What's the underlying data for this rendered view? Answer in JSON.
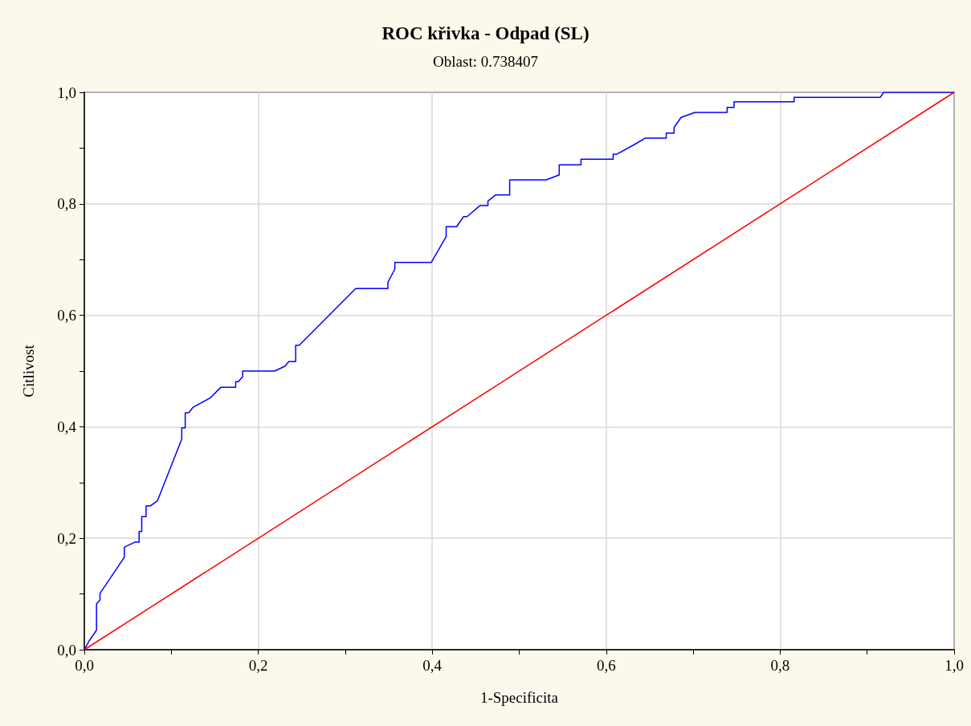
{
  "chart_data": {
    "type": "line",
    "title": "ROC křivka - Odpad (SL)",
    "subtitle": "Oblast: 0.738407",
    "xlabel": "1-Specificita",
    "ylabel": "Citlivost",
    "xlim": [
      0,
      1
    ],
    "ylim": [
      0,
      1
    ],
    "xticks": [
      {
        "value": 0,
        "label": "0,0"
      },
      {
        "value": 0.1,
        "label": null
      },
      {
        "value": 0.2,
        "label": "0,2"
      },
      {
        "value": 0.3,
        "label": null
      },
      {
        "value": 0.4,
        "label": "0,4"
      },
      {
        "value": 0.5,
        "label": null
      },
      {
        "value": 0.6,
        "label": "0,6"
      },
      {
        "value": 0.7,
        "label": null
      },
      {
        "value": 0.8,
        "label": "0,8"
      },
      {
        "value": 0.9,
        "label": null
      },
      {
        "value": 1,
        "label": "1,0"
      }
    ],
    "yticks": [
      {
        "value": 0,
        "label": "0,0"
      },
      {
        "value": 0.1,
        "label": null
      },
      {
        "value": 0.2,
        "label": "0,2"
      },
      {
        "value": 0.3,
        "label": null
      },
      {
        "value": 0.4,
        "label": "0,4"
      },
      {
        "value": 0.5,
        "label": null
      },
      {
        "value": 0.6,
        "label": "0,6"
      },
      {
        "value": 0.7,
        "label": null
      },
      {
        "value": 0.8,
        "label": "0,8"
      },
      {
        "value": 0.9,
        "label": null
      },
      {
        "value": 1,
        "label": "1,0"
      }
    ],
    "grid": true,
    "marker": "none",
    "line_style": "solid",
    "series": [
      {
        "color": "#0000ff",
        "x": [
          0,
          0.006,
          0.014,
          0.014,
          0.018,
          0.018,
          0.046,
          0.046,
          0.058,
          0.063,
          0.063,
          0.066,
          0.066,
          0.071,
          0.071,
          0.076,
          0.084,
          0.112,
          0.112,
          0.116,
          0.116,
          0.12,
          0.125,
          0.145,
          0.157,
          0.174,
          0.174,
          0.177,
          0.182,
          0.182,
          0.219,
          0.231,
          0.235,
          0.243,
          0.243,
          0.247,
          0.312,
          0.349,
          0.349,
          0.357,
          0.357,
          0.399,
          0.416,
          0.416,
          0.428,
          0.436,
          0.44,
          0.455,
          0.464,
          0.464,
          0.473,
          0.489,
          0.489,
          0.531,
          0.546,
          0.546,
          0.571,
          0.571,
          0.608,
          0.608,
          0.612,
          0.632,
          0.645,
          0.669,
          0.669,
          0.678,
          0.678,
          0.686,
          0.702,
          0.739,
          0.739,
          0.747,
          0.747,
          0.816,
          0.816,
          0.915,
          0.919,
          1
        ],
        "values": [
          0,
          0.017,
          0.035,
          0.082,
          0.089,
          0.101,
          0.166,
          0.184,
          0.193,
          0.193,
          0.212,
          0.212,
          0.239,
          0.239,
          0.258,
          0.258,
          0.267,
          0.378,
          0.398,
          0.398,
          0.425,
          0.425,
          0.435,
          0.452,
          0.471,
          0.471,
          0.481,
          0.481,
          0.49,
          0.5,
          0.5,
          0.509,
          0.517,
          0.517,
          0.546,
          0.546,
          0.648,
          0.648,
          0.659,
          0.683,
          0.695,
          0.695,
          0.741,
          0.759,
          0.759,
          0.777,
          0.777,
          0.797,
          0.797,
          0.805,
          0.816,
          0.816,
          0.843,
          0.843,
          0.852,
          0.87,
          0.87,
          0.88,
          0.88,
          0.889,
          0.889,
          0.906,
          0.918,
          0.918,
          0.927,
          0.927,
          0.937,
          0.955,
          0.964,
          0.964,
          0.973,
          0.973,
          0.983,
          0.983,
          0.991,
          0.991,
          1,
          1
        ]
      },
      {
        "color": "#ff0000",
        "x": [
          0,
          1
        ],
        "values": [
          0,
          1
        ]
      }
    ]
  }
}
